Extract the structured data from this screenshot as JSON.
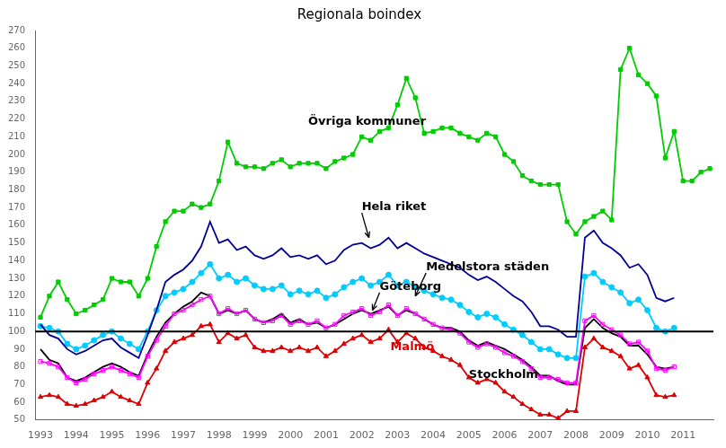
{
  "chart_data": {
    "type": "line",
    "title": "Regionala boindex",
    "background_color": "#ffffff",
    "grid": false,
    "legend": false,
    "x": [
      1993,
      1993.25,
      1993.5,
      1993.75,
      1994,
      1994.25,
      1994.5,
      1994.75,
      1995,
      1995.25,
      1995.5,
      1995.75,
      1996,
      1996.25,
      1996.5,
      1996.75,
      1997,
      1997.25,
      1997.5,
      1997.75,
      1998,
      1998.25,
      1998.5,
      1998.75,
      1999,
      1999.25,
      1999.5,
      1999.75,
      2000,
      2000.25,
      2000.5,
      2000.75,
      2001,
      2001.25,
      2001.5,
      2001.75,
      2002,
      2002.25,
      2002.5,
      2002.75,
      2003,
      2003.25,
      2003.5,
      2003.75,
      2004,
      2004.25,
      2004.5,
      2004.75,
      2005,
      2005.25,
      2005.5,
      2005.75,
      2006,
      2006.25,
      2006.5,
      2006.75,
      2007,
      2007.25,
      2007.5,
      2007.75,
      2008,
      2008.25,
      2008.5,
      2008.75,
      2009,
      2009.25,
      2009.5,
      2009.75,
      2010,
      2010.25,
      2010.5,
      2010.75,
      2011,
      2011.25,
      2011.5,
      2011.75
    ],
    "xlim": [
      1992.85,
      2011.85
    ],
    "xticks": [
      1993,
      1994,
      1995,
      1996,
      1997,
      1998,
      1999,
      2000,
      2001,
      2002,
      2003,
      2004,
      2005,
      2006,
      2007,
      2008,
      2009,
      2010,
      2011
    ],
    "ylim": [
      50,
      270
    ],
    "yticks": [
      50,
      60,
      70,
      80,
      90,
      100,
      110,
      120,
      130,
      140,
      150,
      160,
      170,
      180,
      190,
      200,
      210,
      220,
      230,
      240,
      250,
      260,
      270
    ],
    "hline": 100,
    "series": [
      {
        "color": "#00cc00",
        "marker": "square",
        "values": [
          108,
          120,
          128,
          118,
          110,
          112,
          115,
          118,
          130,
          128,
          128,
          120,
          130,
          148,
          162,
          168,
          168,
          172,
          170,
          172,
          185,
          207,
          195,
          193,
          193,
          192,
          195,
          197,
          193,
          195,
          195,
          195,
          192,
          196,
          198,
          200,
          210,
          208,
          213,
          215,
          228,
          243,
          232,
          212,
          213,
          215,
          215,
          212,
          210,
          208,
          212,
          210,
          200,
          196,
          188,
          185,
          183,
          183,
          183,
          162,
          155,
          162,
          165,
          168,
          163,
          248,
          260,
          245,
          240,
          233,
          198,
          213,
          185,
          185,
          190,
          192
        ]
      },
      {
        "color": "#000099",
        "marker": "none",
        "values": [
          104,
          98,
          96,
          90,
          87,
          89,
          92,
          95,
          96,
          91,
          88,
          85,
          98,
          112,
          128,
          132,
          135,
          140,
          148,
          162,
          150,
          152,
          146,
          148,
          143,
          141,
          143,
          147,
          142,
          143,
          141,
          143,
          138,
          140,
          146,
          149,
          150,
          147,
          149,
          153,
          147,
          150,
          147,
          144,
          142,
          140,
          138,
          136,
          132,
          129,
          131,
          128,
          124,
          120,
          117,
          111,
          103,
          103,
          101,
          97,
          97,
          153,
          157,
          150,
          147,
          143,
          136,
          138,
          132,
          119,
          117,
          119,
          null,
          null,
          null,
          null
        ]
      },
      {
        "color": "#00ccff",
        "marker": "circle",
        "values": [
          103,
          102,
          100,
          93,
          90,
          92,
          95,
          98,
          100,
          96,
          93,
          90,
          100,
          112,
          120,
          122,
          124,
          128,
          133,
          138,
          130,
          132,
          128,
          130,
          126,
          124,
          124,
          126,
          121,
          123,
          121,
          123,
          119,
          121,
          125,
          128,
          130,
          126,
          128,
          132,
          126,
          128,
          125,
          123,
          121,
          119,
          118,
          115,
          111,
          108,
          110,
          108,
          104,
          101,
          98,
          94,
          90,
          90,
          87,
          85,
          85,
          131,
          133,
          128,
          125,
          122,
          116,
          118,
          112,
          102,
          100,
          102,
          null,
          null,
          null,
          null
        ]
      },
      {
        "color": "#ff00ff",
        "marker": "open_square",
        "values": [
          83,
          82,
          80,
          74,
          71,
          73,
          76,
          78,
          80,
          78,
          76,
          74,
          86,
          95,
          103,
          110,
          112,
          115,
          118,
          120,
          110,
          113,
          110,
          112,
          107,
          105,
          106,
          109,
          104,
          106,
          104,
          106,
          102,
          104,
          109,
          111,
          113,
          109,
          111,
          115,
          109,
          113,
          110,
          107,
          104,
          102,
          101,
          99,
          94,
          91,
          93,
          91,
          88,
          86,
          83,
          79,
          74,
          74,
          73,
          71,
          71,
          106,
          109,
          104,
          101,
          98,
          93,
          94,
          89,
          79,
          78,
          80,
          null,
          null,
          null,
          null
        ]
      },
      {
        "color": "#000000",
        "marker": "none",
        "values": [
          90,
          84,
          82,
          74,
          72,
          74,
          77,
          80,
          82,
          80,
          77,
          75,
          87,
          97,
          105,
          110,
          114,
          117,
          122,
          120,
          110,
          112,
          110,
          112,
          107,
          105,
          107,
          110,
          105,
          107,
          104,
          105,
          102,
          104,
          107,
          110,
          112,
          110,
          112,
          114,
          109,
          112,
          110,
          107,
          104,
          102,
          102,
          100,
          95,
          92,
          94,
          92,
          90,
          87,
          84,
          80,
          75,
          75,
          72,
          70,
          70,
          102,
          107,
          102,
          99,
          97,
          92,
          92,
          87,
          80,
          79,
          80,
          null,
          null,
          null,
          null
        ]
      },
      {
        "color": "#dd0000",
        "marker": "triangle",
        "values": [
          63,
          64,
          63,
          59,
          58,
          59,
          61,
          63,
          66,
          63,
          61,
          59,
          71,
          79,
          89,
          94,
          96,
          98,
          103,
          104,
          94,
          99,
          96,
          98,
          91,
          89,
          89,
          91,
          89,
          91,
          89,
          91,
          86,
          89,
          93,
          96,
          98,
          94,
          96,
          101,
          94,
          99,
          96,
          91,
          89,
          86,
          84,
          81,
          74,
          71,
          73,
          71,
          66,
          63,
          59,
          56,
          53,
          53,
          51,
          55,
          55,
          91,
          96,
          91,
          89,
          86,
          79,
          81,
          74,
          64,
          63,
          64,
          null,
          null,
          null,
          null
        ]
      }
    ],
    "annotations": [
      {
        "text": "Övriga kommuner",
        "x": 2000.5,
        "y": 215,
        "color": "#000000"
      },
      {
        "text": "Hela riket",
        "x": 2002.0,
        "y": 167,
        "arrow_x": 2002.2,
        "arrow_y": 153,
        "color": "#000000"
      },
      {
        "text": "Medelstora städen",
        "x": 2003.8,
        "y": 133,
        "arrow_x": 2003.5,
        "arrow_y": 120,
        "color": "#000000"
      },
      {
        "text": "Göteborg",
        "x": 2002.5,
        "y": 122,
        "arrow_x": 2002.3,
        "arrow_y": 112,
        "color": "#000000"
      },
      {
        "text": "Malmö",
        "x": 2002.8,
        "y": 88,
        "color": "#dd0000"
      },
      {
        "text": "Stockholm",
        "x": 2005.0,
        "y": 72,
        "color": "#000000"
      }
    ]
  }
}
